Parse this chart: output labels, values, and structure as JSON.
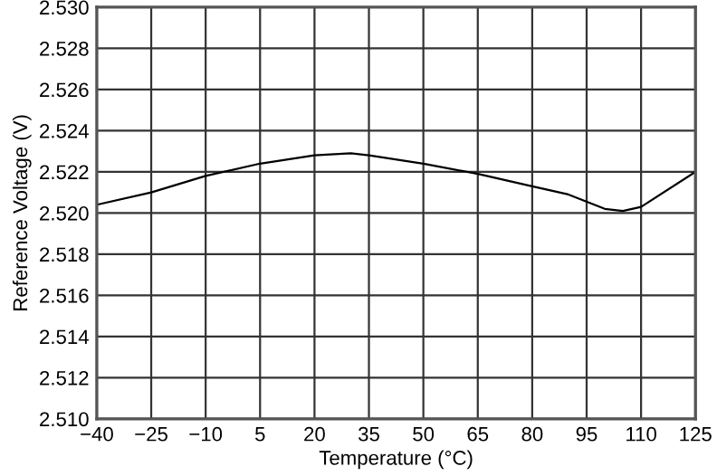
{
  "chart_data": {
    "type": "line",
    "xlabel": "Temperature (°C)",
    "ylabel": "Reference Voltage (V)",
    "x": [
      -40,
      -25,
      -10,
      5,
      20,
      30,
      35,
      50,
      65,
      80,
      90,
      100,
      105,
      110,
      125
    ],
    "series": [
      {
        "color": "#000000",
        "values": [
          2.5204,
          2.521,
          2.5218,
          2.5224,
          2.5228,
          2.5229,
          2.5228,
          2.5224,
          2.5219,
          2.5213,
          2.5209,
          2.5202,
          2.5201,
          2.5203,
          2.522
        ]
      }
    ],
    "xlim": [
      -40,
      125
    ],
    "xticks": [
      {
        "value": -40,
        "label": "−40"
      },
      {
        "value": -25,
        "label": "−25"
      },
      {
        "value": -10,
        "label": "−10"
      },
      5,
      20,
      35,
      50,
      65,
      80,
      95,
      110,
      125
    ],
    "ylim": [
      2.51,
      2.53
    ],
    "yticks": [
      {
        "value": 2.51,
        "label": "2.510"
      },
      {
        "value": 2.512,
        "label": "2.512"
      },
      {
        "value": 2.514,
        "label": "2.514"
      },
      {
        "value": 2.516,
        "label": "2.516"
      },
      {
        "value": 2.518,
        "label": "2.518"
      },
      {
        "value": 2.52,
        "label": "2.520"
      },
      {
        "value": 2.522,
        "label": "2.522"
      },
      {
        "value": 2.524,
        "label": "2.524"
      },
      {
        "value": 2.526,
        "label": "2.526"
      },
      {
        "value": 2.528,
        "label": "2.528"
      },
      {
        "value": 2.53,
        "label": "2.530"
      }
    ],
    "grid": true
  }
}
